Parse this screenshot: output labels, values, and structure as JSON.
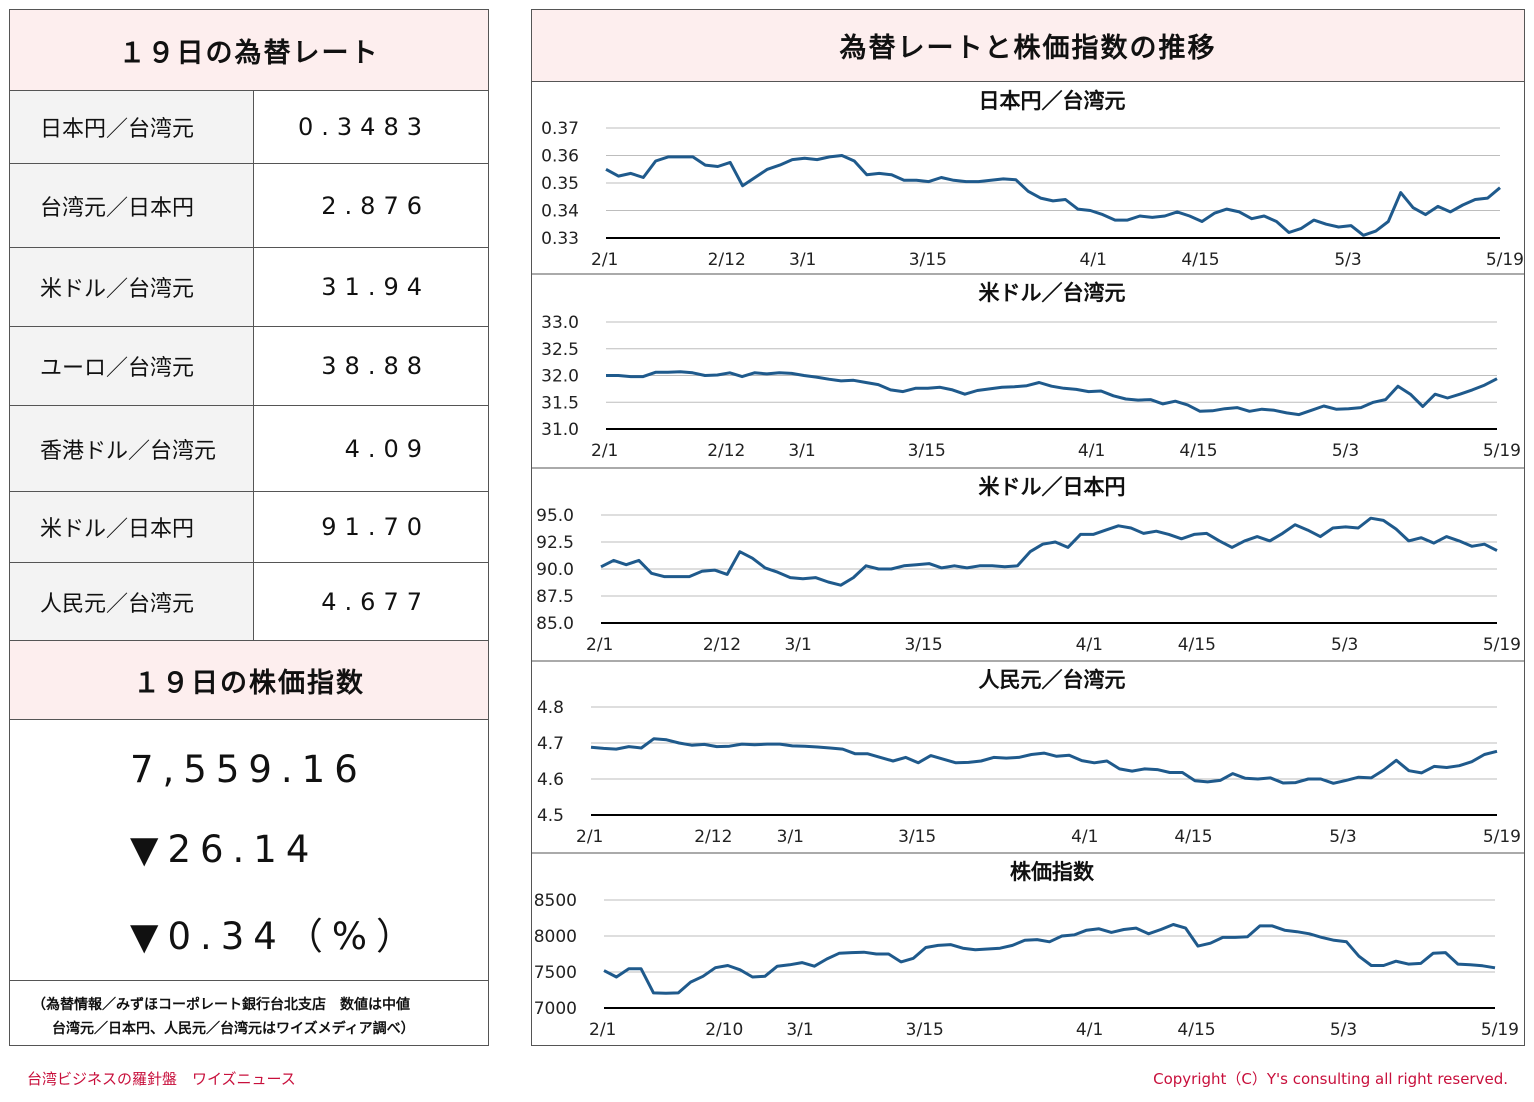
{
  "left": {
    "rates_title": "１９日の為替レート",
    "rates": [
      {
        "name": "日本円／台湾元",
        "value": "0.3483"
      },
      {
        "name": "台湾元／日本円",
        "value": "2.876"
      },
      {
        "name": "米ドル／台湾元",
        "value": "31.94"
      },
      {
        "name": "ユーロ／台湾元",
        "value": "38.88"
      },
      {
        "name": "香港ドル／台湾元",
        "value": "4.09"
      },
      {
        "name": "米ドル／日本円",
        "value": "91.70"
      },
      {
        "name": "人民元／台湾元",
        "value": "4.677"
      }
    ],
    "stock_title": "１９日の株価指数",
    "stock_value": "7,559.16",
    "stock_change": "▼26.14",
    "stock_change_pct": "▼0.34（%）",
    "note_line1": "（為替情報／みずほコーポレート銀行台北支店　数値は中値",
    "note_line2": "台湾元／日本円、人民元／台湾元はワイズメディア調べ）"
  },
  "right_title": "為替レートと株価指数の推移",
  "footer": {
    "left": "台湾ビジネスの羅針盤　ワイズニュース",
    "right": "Copyright（C）Y's consulting all right reserved."
  },
  "colors": {
    "line": "#1f5a8c",
    "header_bg": "#fdeeee",
    "footer": "#c8103c"
  },
  "chart_data": [
    {
      "type": "line",
      "title": "日本円／台湾元",
      "x_tick_labels": [
        "2/1",
        "2/12",
        "3/1",
        "3/15",
        "4/1",
        "4/15",
        "5/3",
        "5/19"
      ],
      "y_tick_labels": [
        "0.37",
        "0.36",
        "0.35",
        "0.34",
        "0.33"
      ],
      "ylim": [
        0.33,
        0.37
      ],
      "grid": true,
      "values": [
        0.355,
        0.3525,
        0.3535,
        0.352,
        0.358,
        0.3595,
        0.3595,
        0.3595,
        0.3565,
        0.356,
        0.3575,
        0.349,
        0.352,
        0.355,
        0.3565,
        0.3585,
        0.359,
        0.3585,
        0.3595,
        0.36,
        0.358,
        0.353,
        0.3535,
        0.353,
        0.351,
        0.351,
        0.3505,
        0.352,
        0.351,
        0.3505,
        0.3505,
        0.351,
        0.3515,
        0.3512,
        0.347,
        0.3445,
        0.3435,
        0.344,
        0.3405,
        0.34,
        0.3385,
        0.3365,
        0.3365,
        0.338,
        0.3375,
        0.338,
        0.3395,
        0.338,
        0.336,
        0.339,
        0.3405,
        0.3395,
        0.337,
        0.338,
        0.336,
        0.332,
        0.3335,
        0.3365,
        0.335,
        0.334,
        0.3345,
        0.331,
        0.3325,
        0.336,
        0.3465,
        0.341,
        0.3385,
        0.3415,
        0.3395,
        0.342,
        0.344,
        0.3445,
        0.3483
      ]
    },
    {
      "type": "line",
      "title": "米ドル／台湾元",
      "x_tick_labels": [
        "2/1",
        "2/12",
        "3/1",
        "3/15",
        "4/1",
        "4/15",
        "5/3",
        "5/19"
      ],
      "y_tick_labels": [
        "33.0",
        "32.5",
        "32.0",
        "31.5",
        "31.0"
      ],
      "ylim": [
        31.0,
        33.0
      ],
      "grid": true,
      "values": [
        32.0,
        32.0,
        31.98,
        31.98,
        32.06,
        32.06,
        32.07,
        32.05,
        32.0,
        32.01,
        32.05,
        31.98,
        32.05,
        32.03,
        32.05,
        32.04,
        32.0,
        31.97,
        31.93,
        31.9,
        31.91,
        31.87,
        31.83,
        31.73,
        31.7,
        31.76,
        31.76,
        31.78,
        31.73,
        31.65,
        31.72,
        31.75,
        31.78,
        31.79,
        31.81,
        31.87,
        31.8,
        31.76,
        31.74,
        31.7,
        31.71,
        31.62,
        31.56,
        31.54,
        31.55,
        31.47,
        31.52,
        31.45,
        31.33,
        31.34,
        31.38,
        31.4,
        31.33,
        31.37,
        31.35,
        31.3,
        31.27,
        31.35,
        31.43,
        31.37,
        31.38,
        31.4,
        31.5,
        31.55,
        31.8,
        31.65,
        31.42,
        31.65,
        31.58,
        31.65,
        31.73,
        31.82,
        31.94
      ]
    },
    {
      "type": "line",
      "title": "米ドル／日本円",
      "x_tick_labels": [
        "2/1",
        "2/12",
        "3/1",
        "3/15",
        "4/1",
        "4/15",
        "5/3",
        "5/19"
      ],
      "y_tick_labels": [
        "95.0",
        "92.5",
        "90.0",
        "87.5",
        "85.0"
      ],
      "ylim": [
        85.0,
        95.0
      ],
      "grid": true,
      "values": [
        90.2,
        90.8,
        90.4,
        90.8,
        89.6,
        89.3,
        89.3,
        89.3,
        89.8,
        89.9,
        89.5,
        91.6,
        91.0,
        90.1,
        89.7,
        89.2,
        89.1,
        89.2,
        88.8,
        88.5,
        89.2,
        90.3,
        90.0,
        90.0,
        90.3,
        90.4,
        90.5,
        90.1,
        90.3,
        90.1,
        90.3,
        90.3,
        90.2,
        90.3,
        91.6,
        92.3,
        92.5,
        92.0,
        93.2,
        93.2,
        93.6,
        94.0,
        93.8,
        93.3,
        93.5,
        93.2,
        92.8,
        93.2,
        93.3,
        92.6,
        92.0,
        92.6,
        93.0,
        92.6,
        93.3,
        94.1,
        93.6,
        93.0,
        93.8,
        93.9,
        93.8,
        94.7,
        94.5,
        93.7,
        92.6,
        92.9,
        92.4,
        93.0,
        92.6,
        92.1,
        92.3,
        91.7
      ]
    },
    {
      "type": "line",
      "title": "人民元／台湾元",
      "x_tick_labels": [
        "2/1",
        "2/12",
        "3/1",
        "3/15",
        "4/1",
        "4/15",
        "5/3",
        "5/19"
      ],
      "y_tick_labels": [
        "4.8",
        "4.7",
        "4.6",
        "4.5"
      ],
      "ylim": [
        4.5,
        4.8
      ],
      "grid": true,
      "values": [
        4.688,
        4.685,
        4.683,
        4.69,
        4.686,
        4.712,
        4.709,
        4.7,
        4.694,
        4.696,
        4.69,
        4.691,
        4.697,
        4.695,
        4.697,
        4.697,
        4.692,
        4.691,
        4.689,
        4.686,
        4.683,
        4.67,
        4.67,
        4.66,
        4.65,
        4.66,
        4.645,
        4.665,
        4.655,
        4.645,
        4.646,
        4.65,
        4.66,
        4.658,
        4.66,
        4.668,
        4.672,
        4.663,
        4.666,
        4.651,
        4.645,
        4.65,
        4.628,
        4.622,
        4.628,
        4.626,
        4.618,
        4.618,
        4.595,
        4.592,
        4.596,
        4.615,
        4.602,
        4.6,
        4.603,
        4.589,
        4.59,
        4.6,
        4.6,
        4.588,
        4.596,
        4.605,
        4.603,
        4.625,
        4.652,
        4.623,
        4.617,
        4.635,
        4.632,
        4.637,
        4.648,
        4.668,
        4.677
      ]
    },
    {
      "type": "line",
      "title": "株価指数",
      "x_tick_labels": [
        "2/1",
        "2/10",
        "3/1",
        "3/15",
        "4/1",
        "4/15",
        "5/3",
        "5/19"
      ],
      "y_tick_labels": [
        "8500",
        "8000",
        "7500",
        "7000"
      ],
      "ylim": [
        7000,
        8500
      ],
      "grid": true,
      "values": [
        7520,
        7430,
        7545,
        7545,
        7210,
        7205,
        7210,
        7360,
        7440,
        7560,
        7590,
        7530,
        7430,
        7440,
        7580,
        7600,
        7630,
        7580,
        7680,
        7760,
        7770,
        7775,
        7750,
        7750,
        7640,
        7690,
        7840,
        7870,
        7880,
        7830,
        7810,
        7820,
        7830,
        7870,
        7940,
        7950,
        7920,
        8000,
        8015,
        8080,
        8100,
        8050,
        8090,
        8110,
        8030,
        8090,
        8160,
        8110,
        7860,
        7900,
        7980,
        7980,
        7990,
        8140,
        8140,
        8080,
        8060,
        8030,
        7980,
        7940,
        7920,
        7720,
        7590,
        7590,
        7650,
        7610,
        7620,
        7760,
        7770,
        7610,
        7600,
        7586,
        7559
      ]
    }
  ]
}
